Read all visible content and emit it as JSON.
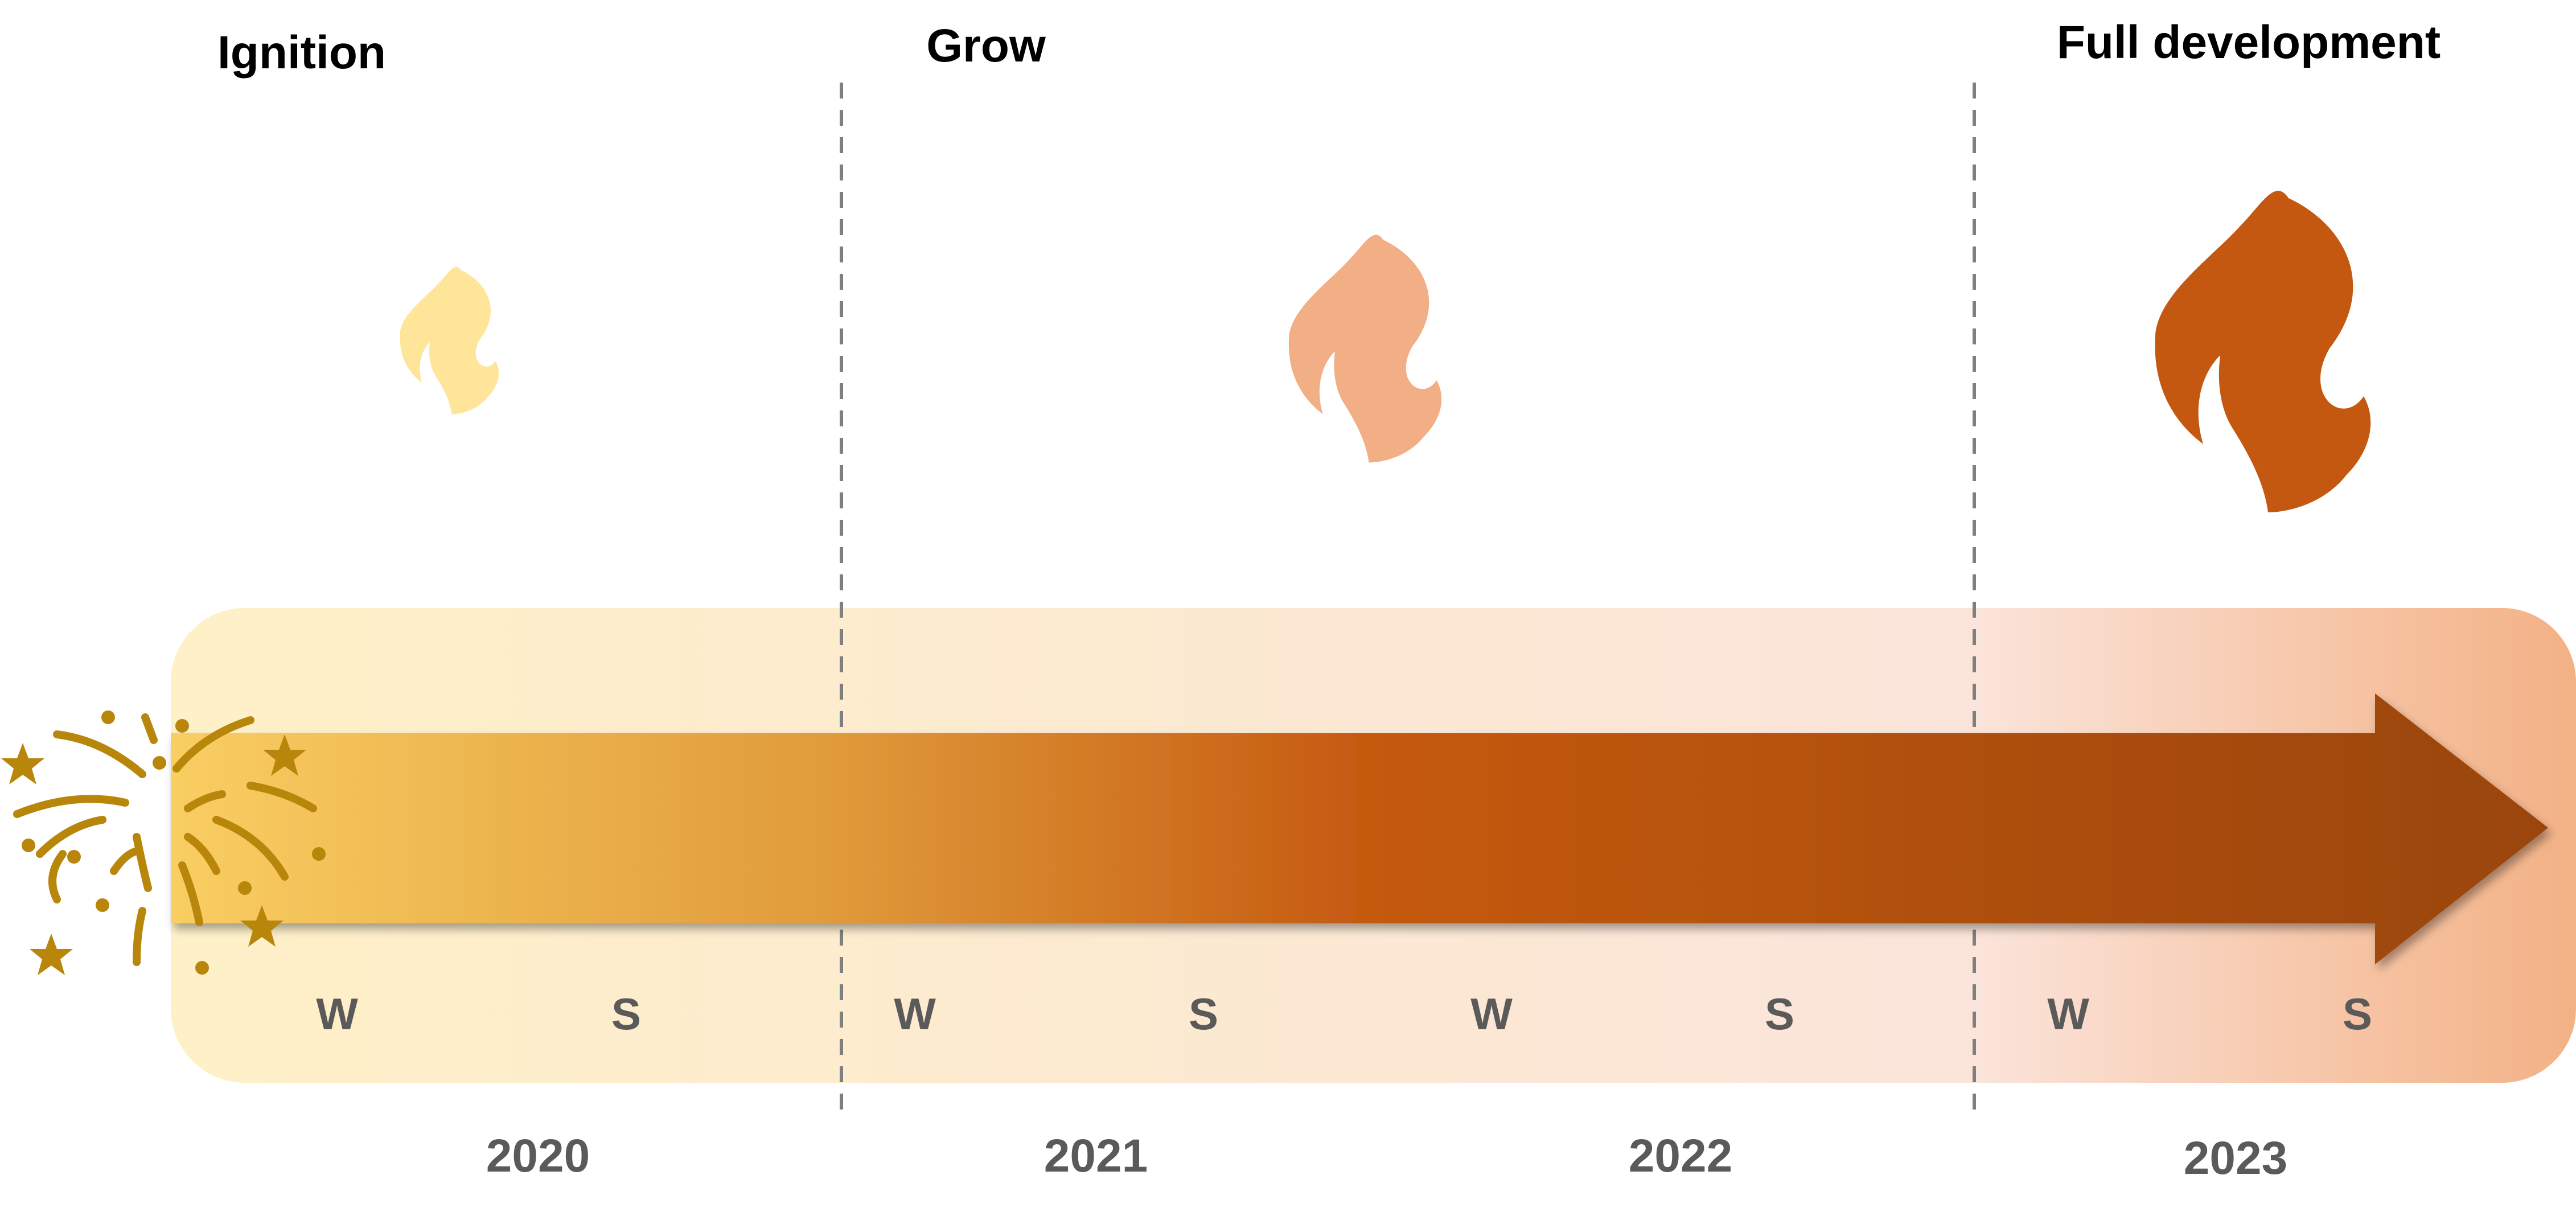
{
  "phases": [
    {
      "label": "Ignition"
    },
    {
      "label": "Grow"
    },
    {
      "label": "Full development"
    }
  ],
  "seasons": [
    "W",
    "S",
    "W",
    "S",
    "W",
    "S",
    "W",
    "S"
  ],
  "years": [
    "2020",
    "2021",
    "2022",
    "2023"
  ],
  "icons": {
    "flame_small": "flame-icon",
    "flame_medium": "flame-icon",
    "flame_large": "flame-icon",
    "fireworks": "fireworks-icon"
  },
  "colors": {
    "flame_small": "#FFE59A",
    "flame_medium": "#F2AE85",
    "flame_large": "#C45811",
    "band_start": "#FEF0C7",
    "band_end": "#F3B185",
    "arrow_start": "#F7C85C",
    "arrow_mid": "#C55A11",
    "arrow_end": "#9E4811",
    "fireworks": "#B8860B",
    "label_gray": "#5A5A5A"
  }
}
